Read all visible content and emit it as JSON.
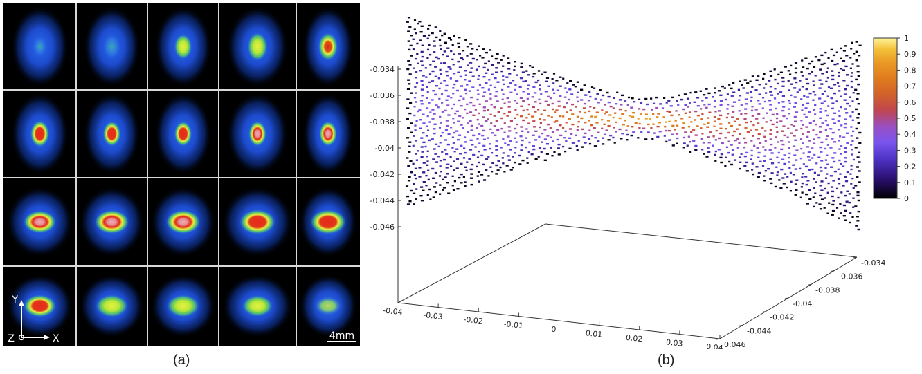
{
  "figure": {
    "panel_a": {
      "caption": "(a)",
      "scale_bar_label": "4mm",
      "axis_y_label": "Y",
      "axis_z_label": "Z",
      "axis_x_label": "X",
      "grid": {
        "rows": 4,
        "cols": 5
      },
      "spots": [
        {
          "core": "blue",
          "core_scale": 0.55
        },
        {
          "core": "blue",
          "core_scale": 0.7
        },
        {
          "core": "yellow",
          "core_scale": 0.75
        },
        {
          "core": "yellow",
          "core_scale": 0.85
        },
        {
          "core": "yellow-red",
          "core_scale": 0.85
        },
        {
          "core": "red",
          "core_scale": 0.8
        },
        {
          "core": "red",
          "core_scale": 0.75
        },
        {
          "core": "red",
          "core_scale": 0.75
        },
        {
          "core": "pink",
          "core_scale": 0.75
        },
        {
          "core": "pink",
          "core_scale": 0.75
        },
        {
          "core": "pink",
          "core_scale": 0.9
        },
        {
          "core": "pink",
          "core_scale": 0.95
        },
        {
          "core": "pink",
          "core_scale": 0.95
        },
        {
          "core": "red",
          "core_scale": 1.0
        },
        {
          "core": "red",
          "core_scale": 1.0
        },
        {
          "core": "red",
          "core_scale": 0.9
        },
        {
          "core": "yellow",
          "core_scale": 0.9
        },
        {
          "core": "yellow",
          "core_scale": 0.9
        },
        {
          "core": "yellow",
          "core_scale": 0.85
        },
        {
          "core": "yellow-fade",
          "core_scale": 0.75
        }
      ]
    },
    "panel_b": {
      "caption": "(b)",
      "colorbar": {
        "ticks": [
          "1",
          "0.9",
          "0.8",
          "0.7",
          "0.6",
          "0.5",
          "0.4",
          "0.3",
          "0.2",
          "0.1",
          "0"
        ],
        "colors": [
          "#000000",
          "#2a0f6e",
          "#5b3ad8",
          "#7a55ee",
          "#9a4ec0",
          "#c0464f",
          "#d3622a",
          "#e07c1d",
          "#ea9a26",
          "#f3c13a",
          "#fff49a"
        ]
      },
      "z_ticks": [
        "-0.034",
        "-0.036",
        "-0.038",
        "-0.04",
        "-0.042",
        "-0.044",
        "-0.046"
      ],
      "x_ticks": [
        "-0.04",
        "-0.03",
        "-0.02",
        "-0.01",
        "0",
        "0.01",
        "0.02",
        "0.03",
        "0.04"
      ],
      "y_ticks": [
        "0.046",
        "-0.044",
        "-0.042",
        "-0.04",
        "-0.038",
        "-0.036",
        "-0.034"
      ]
    }
  }
}
